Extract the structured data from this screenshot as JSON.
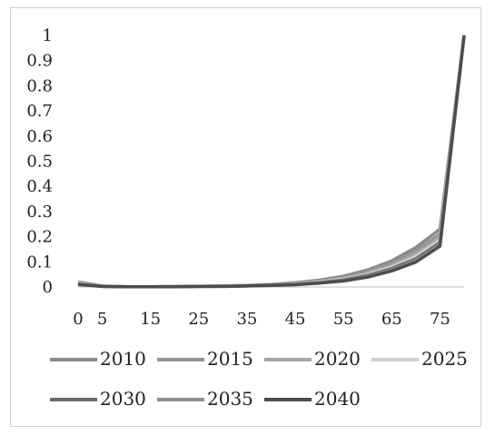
{
  "chart_data": {
    "type": "line",
    "title": "",
    "xlabel": "",
    "ylabel": "",
    "ylim": [
      0,
      1
    ],
    "y_ticks": [
      "0",
      "0.1",
      "0.2",
      "0.3",
      "0.4",
      "0.5",
      "0.6",
      "0.7",
      "0.8",
      "0.9",
      "1"
    ],
    "x_tick_labels": [
      "0",
      "5",
      "15",
      "25",
      "35",
      "45",
      "55",
      "65",
      "75"
    ],
    "x": [
      0,
      5,
      10,
      15,
      20,
      25,
      30,
      35,
      40,
      45,
      50,
      55,
      60,
      65,
      70,
      75,
      80
    ],
    "grid": false,
    "legend_position": "bottom",
    "series": [
      {
        "name": "2010",
        "color": "#8a8a8a",
        "values": [
          0.02,
          0.004,
          0.001,
          0.001,
          0.002,
          0.003,
          0.004,
          0.006,
          0.01,
          0.017,
          0.027,
          0.043,
          0.068,
          0.104,
          0.157,
          0.23,
          1.0
        ]
      },
      {
        "name": "2015",
        "color": "#959595",
        "values": [
          0.018,
          0.003,
          0.001,
          0.001,
          0.002,
          0.003,
          0.004,
          0.006,
          0.009,
          0.015,
          0.024,
          0.038,
          0.061,
          0.094,
          0.143,
          0.212,
          1.0
        ]
      },
      {
        "name": "2020",
        "color": "#a6a6a6",
        "values": [
          0.016,
          0.003,
          0.001,
          0.001,
          0.002,
          0.002,
          0.003,
          0.005,
          0.008,
          0.013,
          0.021,
          0.034,
          0.055,
          0.086,
          0.131,
          0.198,
          1.0
        ]
      },
      {
        "name": "2025",
        "color": "#cfcfcf",
        "values": [
          0.014,
          0.003,
          0.001,
          0.001,
          0.001,
          0.002,
          0.003,
          0.005,
          0.007,
          0.012,
          0.019,
          0.031,
          0.05,
          0.079,
          0.121,
          0.186,
          1.0
        ]
      },
      {
        "name": "2030",
        "color": "#6a6a6a",
        "values": [
          0.012,
          0.002,
          0.001,
          0.001,
          0.001,
          0.002,
          0.003,
          0.004,
          0.007,
          0.011,
          0.017,
          0.028,
          0.046,
          0.073,
          0.112,
          0.176,
          1.0
        ]
      },
      {
        "name": "2035",
        "color": "#8f8f8f",
        "values": [
          0.011,
          0.002,
          0.001,
          0.001,
          0.001,
          0.002,
          0.002,
          0.004,
          0.006,
          0.01,
          0.016,
          0.026,
          0.042,
          0.068,
          0.105,
          0.168,
          1.0
        ]
      },
      {
        "name": "2040",
        "color": "#4d4d4d",
        "values": [
          0.01,
          0.002,
          0.001,
          0.001,
          0.001,
          0.002,
          0.002,
          0.004,
          0.006,
          0.009,
          0.015,
          0.024,
          0.039,
          0.064,
          0.099,
          0.162,
          1.0
        ]
      }
    ]
  }
}
